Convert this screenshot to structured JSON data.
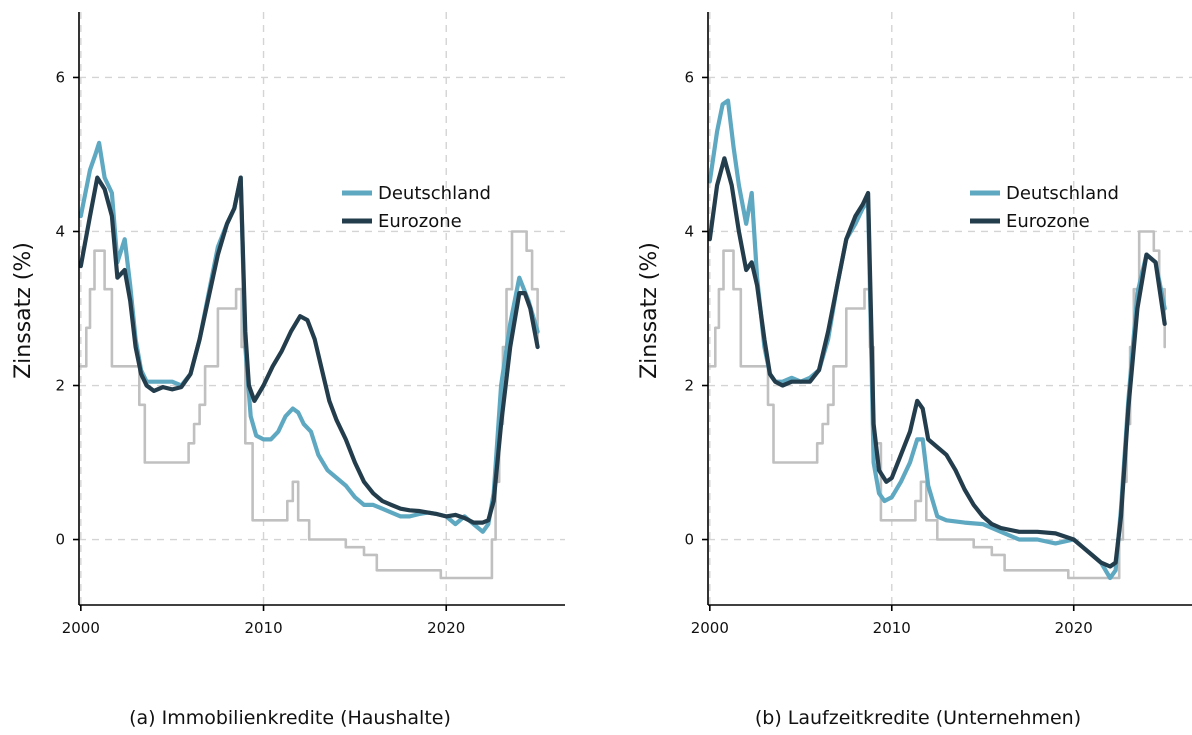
{
  "chart_data": [
    {
      "type": "line",
      "caption": "(a) Immobilienkredite (Haushalte)",
      "ylabel": "Zinssatz (%)",
      "xlabel": "",
      "xlim": [
        1999.9,
        2026.5
      ],
      "ylim": [
        -0.85,
        6.85
      ],
      "xticks": [
        2000,
        2010,
        2020
      ],
      "yticks": [
        0,
        2,
        4,
        6
      ],
      "grid": true,
      "legend_position": "center",
      "series": [
        {
          "name": "Deutschland",
          "color": "#5fa8c1",
          "legend": true,
          "x": [
            2000,
            2000.5,
            2000.8,
            2001,
            2001.3,
            2001.7,
            2002,
            2002.4,
            2002.7,
            2003,
            2003.3,
            2003.6,
            2004,
            2004.5,
            2005,
            2005.5,
            2006,
            2006.5,
            2007,
            2007.5,
            2008,
            2008.4,
            2008.75,
            2009,
            2009.3,
            2009.6,
            2010,
            2010.4,
            2010.8,
            2011.2,
            2011.6,
            2011.9,
            2012.2,
            2012.6,
            2013,
            2013.5,
            2014,
            2014.5,
            2015,
            2015.5,
            2016,
            2016.5,
            2017,
            2017.5,
            2018,
            2018.5,
            2019,
            2019.5,
            2020,
            2020.5,
            2021,
            2021.5,
            2022,
            2022.3,
            2022.6,
            2023,
            2023.5,
            2024,
            2024.5,
            2025
          ],
          "y": [
            4.2,
            4.8,
            5.0,
            5.15,
            4.7,
            4.5,
            3.6,
            3.9,
            3.3,
            2.6,
            2.2,
            2.05,
            2.05,
            2.05,
            2.05,
            2.0,
            2.15,
            2.6,
            3.2,
            3.8,
            4.1,
            4.3,
            4.7,
            2.5,
            1.6,
            1.35,
            1.3,
            1.3,
            1.4,
            1.6,
            1.7,
            1.65,
            1.5,
            1.4,
            1.1,
            0.9,
            0.8,
            0.7,
            0.55,
            0.45,
            0.45,
            0.4,
            0.35,
            0.3,
            0.3,
            0.33,
            0.35,
            0.33,
            0.3,
            0.2,
            0.3,
            0.2,
            0.1,
            0.2,
            0.6,
            2.0,
            2.8,
            3.4,
            3.1,
            2.7
          ]
        },
        {
          "name": "Eurozone",
          "color": "#233d4d",
          "legend": true,
          "x": [
            2000,
            2000.5,
            2000.9,
            2001.3,
            2001.7,
            2002,
            2002.4,
            2002.7,
            2003,
            2003.3,
            2003.6,
            2004,
            2004.5,
            2005,
            2005.5,
            2006,
            2006.5,
            2007,
            2007.5,
            2008,
            2008.4,
            2008.75,
            2009,
            2009.2,
            2009.5,
            2010,
            2010.5,
            2011,
            2011.5,
            2012,
            2012.4,
            2012.8,
            2013.2,
            2013.6,
            2014,
            2014.5,
            2015,
            2015.5,
            2016,
            2016.5,
            2017,
            2017.5,
            2018,
            2018.5,
            2019,
            2019.5,
            2020,
            2020.5,
            2021,
            2021.5,
            2022,
            2022.3,
            2022.6,
            2023,
            2023.5,
            2024,
            2024.3,
            2024.6,
            2025
          ],
          "y": [
            3.55,
            4.2,
            4.7,
            4.55,
            4.2,
            3.4,
            3.5,
            3.1,
            2.5,
            2.15,
            2.0,
            1.93,
            1.98,
            1.95,
            1.98,
            2.15,
            2.6,
            3.15,
            3.7,
            4.1,
            4.3,
            4.7,
            2.7,
            2.0,
            1.8,
            2.0,
            2.25,
            2.45,
            2.7,
            2.9,
            2.85,
            2.6,
            2.2,
            1.8,
            1.55,
            1.3,
            1.0,
            0.75,
            0.6,
            0.5,
            0.45,
            0.4,
            0.38,
            0.37,
            0.35,
            0.33,
            0.3,
            0.32,
            0.28,
            0.22,
            0.22,
            0.25,
            0.5,
            1.5,
            2.5,
            3.2,
            3.2,
            3.0,
            2.5
          ]
        },
        {
          "name": "",
          "color": "#c0c0c0",
          "legend": false,
          "step": true,
          "x": [
            2000,
            2000.3,
            2000.5,
            2000.75,
            2001.3,
            2001.7,
            2003.2,
            2003.5,
            2005.9,
            2006.2,
            2006.5,
            2006.8,
            2007.5,
            2008.5,
            2008.8,
            2009,
            2009.4,
            2011.3,
            2011.6,
            2011.9,
            2012.5,
            2013.4,
            2014.5,
            2015.5,
            2016.2,
            2019.7,
            2022.5,
            2022.7,
            2022.9,
            2023.1,
            2023.3,
            2023.6,
            2024.4,
            2024.7,
            2025,
            2025
          ],
          "y": [
            2.25,
            2.75,
            3.25,
            3.75,
            3.25,
            2.25,
            1.75,
            1.0,
            1.25,
            1.5,
            1.75,
            2.25,
            3.0,
            3.25,
            2.5,
            1.25,
            0.25,
            0.5,
            0.75,
            0.25,
            0.0,
            0.0,
            -0.1,
            -0.2,
            -0.4,
            -0.5,
            0.0,
            0.75,
            1.5,
            2.5,
            3.25,
            4.0,
            3.75,
            3.25,
            3.0,
            2.5
          ]
        }
      ]
    },
    {
      "type": "line",
      "caption": "(b) Laufzeitkredite (Unternehmen)",
      "ylabel": "Zinssatz (%)",
      "xlabel": "",
      "xlim": [
        1999.9,
        2026.5
      ],
      "ylim": [
        -0.85,
        6.85
      ],
      "xticks": [
        2000,
        2010,
        2020
      ],
      "yticks": [
        0,
        2,
        4,
        6
      ],
      "grid": true,
      "legend_position": "center",
      "series": [
        {
          "name": "Deutschland",
          "color": "#5fa8c1",
          "legend": true,
          "x": [
            2000,
            2000.4,
            2000.7,
            2001,
            2001.3,
            2001.6,
            2002,
            2002.3,
            2002.6,
            2003,
            2003.3,
            2003.6,
            2004,
            2004.5,
            2005,
            2005.5,
            2006,
            2006.5,
            2007,
            2007.5,
            2008,
            2008.4,
            2008.7,
            2009,
            2009.3,
            2009.6,
            2010,
            2010.5,
            2011,
            2011.4,
            2011.7,
            2012,
            2012.5,
            2013,
            2014,
            2015,
            2016,
            2017,
            2018,
            2019,
            2020,
            2020.5,
            2021,
            2021.5,
            2022,
            2022.3,
            2022.6,
            2023,
            2023.5,
            2024,
            2024.5,
            2025
          ],
          "y": [
            4.65,
            5.3,
            5.65,
            5.7,
            5.1,
            4.6,
            4.1,
            4.5,
            3.4,
            2.5,
            2.15,
            2.05,
            2.05,
            2.1,
            2.05,
            2.1,
            2.2,
            2.6,
            3.3,
            3.9,
            4.1,
            4.3,
            4.4,
            1.0,
            0.6,
            0.5,
            0.55,
            0.75,
            1.0,
            1.3,
            1.3,
            0.7,
            0.3,
            0.25,
            0.22,
            0.2,
            0.1,
            0.0,
            0.0,
            -0.05,
            0.0,
            -0.1,
            -0.2,
            -0.3,
            -0.5,
            -0.4,
            0.4,
            1.8,
            3.2,
            3.7,
            3.6,
            3.0
          ]
        },
        {
          "name": "Eurozone",
          "color": "#233d4d",
          "legend": true,
          "x": [
            2000,
            2000.4,
            2000.8,
            2001.2,
            2001.6,
            2002,
            2002.3,
            2002.6,
            2003,
            2003.3,
            2003.6,
            2004,
            2004.5,
            2005,
            2005.5,
            2006,
            2006.5,
            2007,
            2007.5,
            2008,
            2008.4,
            2008.7,
            2009,
            2009.3,
            2009.7,
            2010,
            2010.5,
            2011,
            2011.4,
            2011.7,
            2012,
            2012.5,
            2013,
            2013.5,
            2014,
            2014.5,
            2015,
            2015.5,
            2016,
            2017,
            2018,
            2019,
            2020,
            2020.5,
            2021,
            2021.5,
            2022,
            2022.3,
            2022.6,
            2023,
            2023.5,
            2024,
            2024.5,
            2025
          ],
          "y": [
            3.9,
            4.6,
            4.95,
            4.6,
            4.0,
            3.5,
            3.6,
            3.3,
            2.6,
            2.15,
            2.05,
            2.0,
            2.05,
            2.05,
            2.05,
            2.2,
            2.7,
            3.3,
            3.9,
            4.2,
            4.35,
            4.5,
            1.5,
            0.9,
            0.75,
            0.8,
            1.1,
            1.4,
            1.8,
            1.7,
            1.3,
            1.2,
            1.1,
            0.9,
            0.65,
            0.45,
            0.3,
            0.2,
            0.15,
            0.1,
            0.1,
            0.08,
            0.0,
            -0.1,
            -0.2,
            -0.3,
            -0.35,
            -0.3,
            0.3,
            1.7,
            3.0,
            3.7,
            3.6,
            2.8
          ]
        },
        {
          "name": "",
          "color": "#c0c0c0",
          "legend": false,
          "step": true,
          "x": [
            2000,
            2000.3,
            2000.5,
            2000.75,
            2001.3,
            2001.7,
            2003.2,
            2003.5,
            2005.9,
            2006.2,
            2006.5,
            2006.8,
            2007.5,
            2008.5,
            2008.8,
            2009,
            2009.4,
            2011.3,
            2011.6,
            2011.9,
            2012.5,
            2013.4,
            2014.5,
            2015.5,
            2016.2,
            2019.7,
            2022.5,
            2022.7,
            2022.9,
            2023.1,
            2023.3,
            2023.6,
            2024.4,
            2024.7,
            2025,
            2025
          ],
          "y": [
            2.25,
            2.75,
            3.25,
            3.75,
            3.25,
            2.25,
            1.75,
            1.0,
            1.25,
            1.5,
            1.75,
            2.25,
            3.0,
            3.25,
            2.5,
            1.25,
            0.25,
            0.5,
            0.75,
            0.25,
            0.0,
            0.0,
            -0.1,
            -0.2,
            -0.4,
            -0.5,
            0.0,
            0.75,
            1.5,
            2.5,
            3.25,
            4.0,
            3.75,
            3.25,
            3.0,
            2.5
          ]
        }
      ]
    }
  ]
}
